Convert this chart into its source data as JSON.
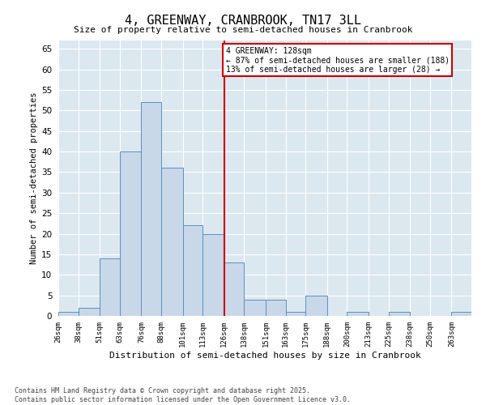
{
  "title": "4, GREENWAY, CRANBROOK, TN17 3LL",
  "subtitle": "Size of property relative to semi-detached houses in Cranbrook",
  "xlabel": "Distribution of semi-detached houses by size in Cranbrook",
  "ylabel": "Number of semi-detached properties",
  "bin_edges": [
    26,
    38,
    51,
    63,
    76,
    88,
    101,
    113,
    126,
    138,
    151,
    163,
    175,
    188,
    200,
    213,
    225,
    238,
    250,
    263,
    275
  ],
  "values": [
    1,
    2,
    14,
    40,
    52,
    36,
    22,
    20,
    13,
    4,
    4,
    1,
    5,
    0,
    1,
    0,
    1,
    0,
    0,
    1
  ],
  "bar_color": "#c8d8e8",
  "bar_edge_color": "#5a8fc0",
  "property_line_x": 126,
  "property_line_color": "#cc0000",
  "annotation_text": "4 GREENWAY: 128sqm\n← 87% of semi-detached houses are smaller (188)\n13% of semi-detached houses are larger (28) →",
  "annotation_box_edgecolor": "#cc0000",
  "ylim": [
    0,
    67
  ],
  "yticks": [
    0,
    5,
    10,
    15,
    20,
    25,
    30,
    35,
    40,
    45,
    50,
    55,
    60,
    65
  ],
  "bg_color": "#dce8f0",
  "grid_color": "#ffffff",
  "footnote": "Contains HM Land Registry data © Crown copyright and database right 2025.\nContains public sector information licensed under the Open Government Licence v3.0."
}
